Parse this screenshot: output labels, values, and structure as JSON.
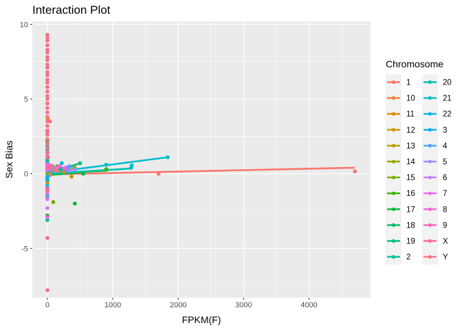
{
  "chart_data": {
    "type": "scatter",
    "title": "Interaction Plot",
    "xlabel": "FPKM(F)",
    "ylabel": "Sex Bias",
    "xlim": [
      -230,
      4940
    ],
    "ylim": [
      -8.3,
      10.2
    ],
    "xticks": [
      0,
      1000,
      2000,
      3000,
      4000
    ],
    "yticks": [
      -5,
      0,
      5,
      10
    ],
    "xtick_labels": [
      "0",
      "1000",
      "2000",
      "3000",
      "4000"
    ],
    "ytick_labels": [
      "-5",
      "0",
      "5",
      "10"
    ],
    "grid": true,
    "legend": {
      "title": "Chromosome",
      "position": "right",
      "columns": 2
    },
    "series": [
      {
        "name": "1",
        "color": "#F8766D",
        "points": [
          [
            0,
            0.3
          ],
          [
            0,
            -0.2
          ],
          [
            0,
            0.6
          ],
          [
            15,
            0.2
          ],
          [
            40,
            -0.1
          ],
          [
            90,
            0.3
          ],
          [
            1700,
            0.0
          ],
          [
            4700,
            0.15
          ]
        ],
        "fit": [
          [
            0,
            -0.05
          ],
          [
            4700,
            0.4
          ]
        ]
      },
      {
        "name": "10",
        "color": "#F07F3A",
        "points": [
          [
            0,
            0.5
          ],
          [
            0,
            -0.4
          ],
          [
            10,
            1.1
          ],
          [
            60,
            0.4
          ],
          [
            180,
            0.2
          ]
        ],
        "fit": [
          [
            0,
            0.0
          ],
          [
            200,
            0.3
          ]
        ]
      },
      {
        "name": "11",
        "color": "#E38900",
        "points": [
          [
            0,
            0.4
          ],
          [
            0,
            -0.5
          ],
          [
            5,
            3.7
          ],
          [
            30,
            0.3
          ],
          [
            260,
            0.1
          ]
        ],
        "fit": [
          [
            0,
            0.1
          ],
          [
            300,
            0.3
          ]
        ]
      },
      {
        "name": "12",
        "color": "#D09400",
        "points": [
          [
            0,
            0.2
          ],
          [
            0,
            -0.6
          ],
          [
            20,
            0.6
          ],
          [
            140,
            0.4
          ],
          [
            280,
            0.2
          ]
        ],
        "fit": [
          [
            0,
            0.05
          ],
          [
            300,
            0.4
          ]
        ]
      },
      {
        "name": "13",
        "color": "#B79F00",
        "points": [
          [
            0,
            0.1
          ],
          [
            0,
            0.8
          ],
          [
            30,
            0.5
          ],
          [
            370,
            -0.2
          ]
        ],
        "fit": [
          [
            0,
            0.1
          ],
          [
            380,
            0.3
          ]
        ]
      },
      {
        "name": "14",
        "color": "#9AA800",
        "points": [
          [
            0,
            0.3
          ],
          [
            0,
            -0.3
          ],
          [
            50,
            0.2
          ],
          [
            420,
            0.4
          ]
        ],
        "fit": [
          [
            0,
            0.1
          ],
          [
            430,
            0.35
          ]
        ]
      },
      {
        "name": "15",
        "color": "#73B000",
        "points": [
          [
            0,
            0.0
          ],
          [
            0,
            1.4
          ],
          [
            90,
            -1.9
          ],
          [
            150,
            0.5
          ]
        ],
        "fit": [
          [
            0,
            0.0
          ],
          [
            200,
            0.2
          ]
        ]
      },
      {
        "name": "16",
        "color": "#35B600",
        "points": [
          [
            0,
            4.7
          ],
          [
            0,
            -0.9
          ],
          [
            10,
            0.3
          ],
          [
            900,
            0.3
          ]
        ],
        "fit": [
          [
            0,
            0.0
          ],
          [
            920,
            0.2
          ]
        ]
      },
      {
        "name": "17",
        "color": "#00BA38",
        "points": [
          [
            0,
            2.2
          ],
          [
            0,
            -2.8
          ],
          [
            0,
            -3.1
          ],
          [
            420,
            -2.0
          ],
          [
            550,
            0.0
          ]
        ],
        "fit": [
          [
            0,
            -0.1
          ],
          [
            560,
            0.1
          ]
        ]
      },
      {
        "name": "18",
        "color": "#00BD62",
        "points": [
          [
            0,
            1.8
          ],
          [
            0,
            -1.1
          ],
          [
            30,
            0.4
          ],
          [
            200,
            0.3
          ]
        ],
        "fit": [
          [
            0,
            0.0
          ],
          [
            300,
            0.3
          ]
        ]
      },
      {
        "name": "19",
        "color": "#00BF81",
        "points": [
          [
            0,
            0.9
          ],
          [
            0,
            -1.5
          ],
          [
            80,
            0.5
          ],
          [
            500,
            0.7
          ]
        ],
        "fit": [
          [
            0,
            0.0
          ],
          [
            500,
            0.7
          ]
        ]
      },
      {
        "name": "2",
        "color": "#00C09C",
        "points": [
          [
            0,
            0.6
          ],
          [
            0,
            -3.1
          ],
          [
            10,
            0.3
          ],
          [
            300,
            0.4
          ]
        ],
        "fit": [
          [
            0,
            0.0
          ],
          [
            400,
            0.5
          ]
        ]
      },
      {
        "name": "20",
        "color": "#00C0B5",
        "points": [
          [
            0,
            0.3
          ],
          [
            0,
            -0.4
          ],
          [
            20,
            0.2
          ],
          [
            1280,
            0.4
          ]
        ],
        "fit": [
          [
            0,
            0.0
          ],
          [
            1280,
            0.35
          ]
        ]
      },
      {
        "name": "21",
        "color": "#00BDCC",
        "points": [
          [
            0,
            1.6
          ],
          [
            0,
            -0.8
          ],
          [
            900,
            0.6
          ],
          [
            1290,
            0.55
          ],
          [
            1840,
            1.1
          ]
        ],
        "fit": [
          [
            0,
            0.05
          ],
          [
            1840,
            1.1
          ]
        ]
      },
      {
        "name": "22",
        "color": "#00B8E1",
        "points": [
          [
            0,
            0.5
          ],
          [
            0,
            -0.4
          ],
          [
            220,
            0.7
          ],
          [
            300,
            0.2
          ]
        ],
        "fit": [
          [
            0,
            0.1
          ],
          [
            320,
            0.4
          ]
        ]
      },
      {
        "name": "3",
        "color": "#00B0F6",
        "points": [
          [
            0,
            1.1
          ],
          [
            0,
            -0.2
          ],
          [
            60,
            0.5
          ],
          [
            240,
            0.3
          ]
        ],
        "fit": [
          [
            0,
            0.1
          ],
          [
            260,
            0.4
          ]
        ]
      },
      {
        "name": "4",
        "color": "#4CA2FF",
        "points": [
          [
            0,
            0.7
          ],
          [
            0,
            -0.9
          ],
          [
            100,
            0.2
          ],
          [
            340,
            0.5
          ]
        ],
        "fit": [
          [
            0,
            0.05
          ],
          [
            360,
            0.45
          ]
        ]
      },
      {
        "name": "5",
        "color": "#9590FF",
        "points": [
          [
            0,
            0.2
          ],
          [
            0,
            -1.4
          ],
          [
            50,
            0.4
          ],
          [
            420,
            0.3
          ]
        ],
        "fit": [
          [
            0,
            0.1
          ],
          [
            430,
            0.3
          ]
        ]
      },
      {
        "name": "6",
        "color": "#C77CFF",
        "points": [
          [
            0,
            1.2
          ],
          [
            0,
            -2.3
          ],
          [
            30,
            0.6
          ],
          [
            330,
            0.2
          ]
        ],
        "fit": [
          [
            0,
            0.1
          ],
          [
            330,
            0.4
          ]
        ]
      },
      {
        "name": "7",
        "color": "#E76BF3",
        "points": [
          [
            0,
            0.4
          ],
          [
            0,
            -1.7
          ],
          [
            150,
            0.4
          ],
          [
            280,
            0.4
          ]
        ],
        "fit": [
          [
            0,
            0.05
          ],
          [
            300,
            0.5
          ]
        ]
      },
      {
        "name": "8",
        "color": "#FA62DB",
        "points": [
          [
            0,
            0.6
          ],
          [
            0,
            -2.9
          ],
          [
            20,
            0.3
          ],
          [
            190,
            0.5
          ]
        ],
        "fit": [
          [
            0,
            0.1
          ],
          [
            220,
            0.5
          ]
        ]
      },
      {
        "name": "9",
        "color": "#FF62BC",
        "points": [
          [
            0,
            0.3
          ],
          [
            0,
            -1.2
          ],
          [
            70,
            0.5
          ],
          [
            260,
            0.3
          ]
        ],
        "fit": [
          [
            0,
            0.05
          ],
          [
            280,
            0.4
          ]
        ]
      },
      {
        "name": "X",
        "color": "#FF6C91",
        "points": [
          [
            0,
            2.8
          ],
          [
            0,
            -1.0
          ],
          [
            40,
            0.5
          ],
          [
            120,
            0.2
          ]
        ],
        "fit": [
          [
            0,
            0.2
          ],
          [
            150,
            0.35
          ]
        ]
      },
      {
        "name": "Y",
        "color": "#FD6F86",
        "points": [
          [
            0,
            9.3
          ],
          [
            0,
            9.1
          ],
          [
            0,
            8.9
          ],
          [
            0,
            8.6
          ],
          [
            0,
            8.3
          ],
          [
            0,
            8.1
          ],
          [
            0,
            7.8
          ],
          [
            0,
            7.6
          ],
          [
            0,
            7.3
          ],
          [
            0,
            7.1
          ],
          [
            0,
            6.8
          ],
          [
            0,
            6.6
          ],
          [
            0,
            6.3
          ],
          [
            0,
            6.1
          ],
          [
            0,
            5.8
          ],
          [
            0,
            5.5
          ],
          [
            0,
            5.2
          ],
          [
            0,
            5.0
          ],
          [
            0,
            4.7
          ],
          [
            0,
            4.4
          ],
          [
            0,
            4.1
          ],
          [
            0,
            3.8
          ],
          [
            0,
            3.5
          ],
          [
            0,
            3.2
          ],
          [
            0,
            2.9
          ],
          [
            0,
            2.6
          ],
          [
            0,
            2.3
          ],
          [
            0,
            2.0
          ],
          [
            0,
            1.7
          ],
          [
            0,
            1.4
          ],
          [
            0,
            1.1
          ],
          [
            0,
            -4.3
          ],
          [
            0,
            -7.8
          ],
          [
            40,
            3.5
          ]
        ],
        "fit": [
          [
            0,
            0.2
          ],
          [
            50,
            0.5
          ]
        ]
      }
    ]
  }
}
